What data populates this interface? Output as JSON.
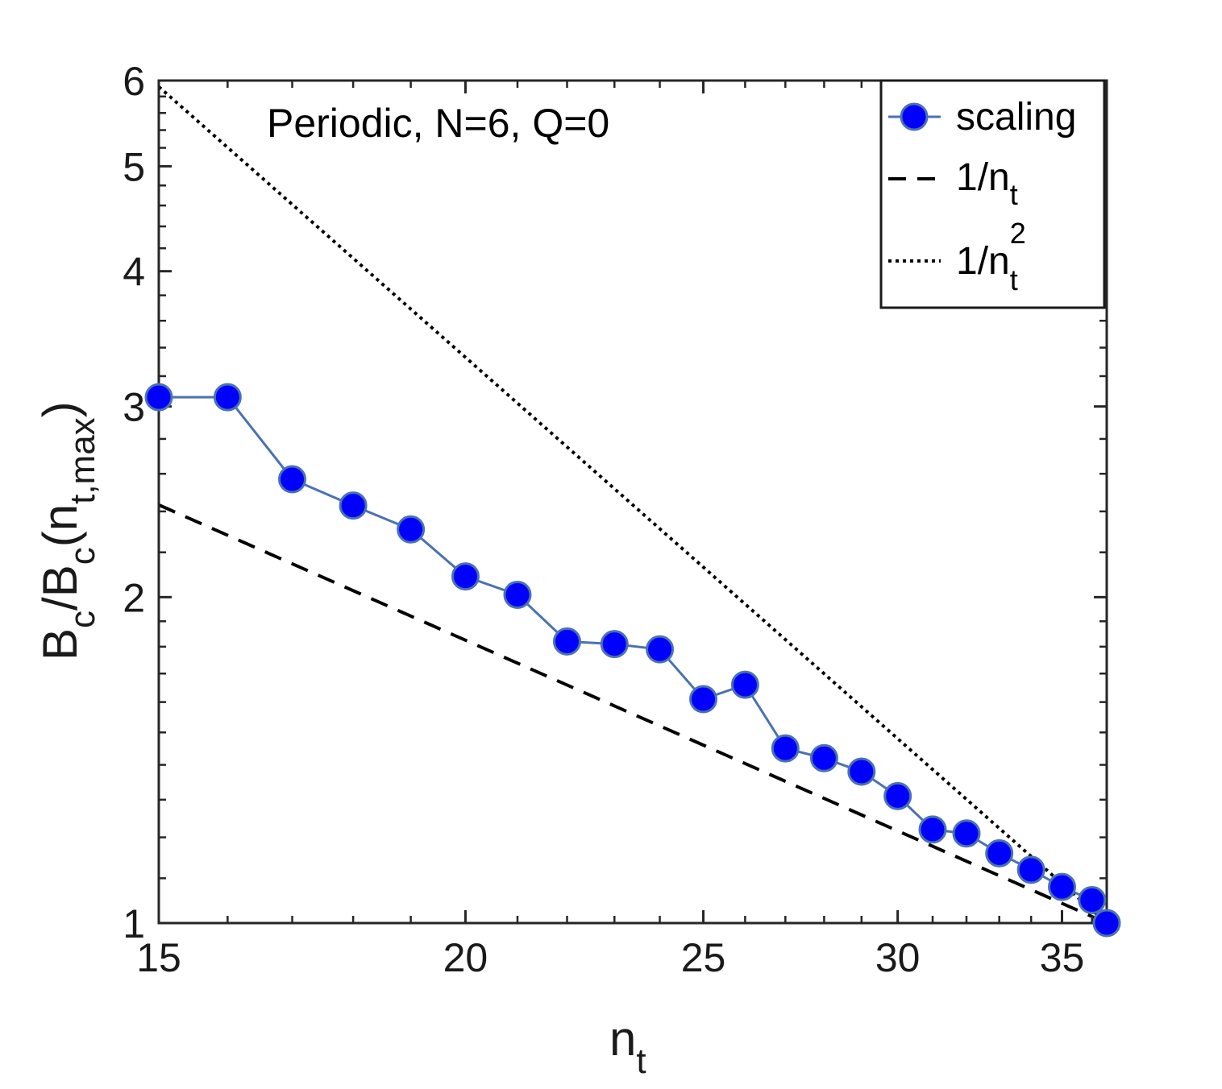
{
  "chart_data": {
    "type": "line",
    "title": "",
    "annotation": "Periodic, N=6, Q=0",
    "xscale": "log",
    "yscale": "log",
    "xlim": [
      15,
      36.5
    ],
    "ylim": [
      1,
      6
    ],
    "xticks": [
      15,
      20,
      25,
      30,
      35
    ],
    "yticks": [
      1,
      2,
      3,
      4,
      5,
      6
    ],
    "xlabel": {
      "main": "n",
      "sub": "t"
    },
    "ylabel": {
      "parts": [
        {
          "text": "B",
          "role": "base"
        },
        {
          "text": "c",
          "role": "sub"
        },
        {
          "text": "/B",
          "role": "base"
        },
        {
          "text": "c",
          "role": "sub"
        },
        {
          "text": "(n",
          "role": "base"
        },
        {
          "text": "t,max",
          "role": "sub"
        },
        {
          "text": ")",
          "role": "base"
        }
      ]
    },
    "grid": false,
    "legend_position": "top-right",
    "series": [
      {
        "name": "scaling",
        "style": "line-marker",
        "color": "#0000ff",
        "line_color": "#4a72b0",
        "x": [
          15,
          16,
          17,
          18,
          19,
          20,
          21,
          22,
          23,
          24,
          25,
          26,
          27,
          28,
          29,
          30,
          31,
          32,
          33,
          34,
          35,
          36,
          36.5
        ],
        "y": [
          3.06,
          3.06,
          2.57,
          2.43,
          2.31,
          2.09,
          2.01,
          1.82,
          1.81,
          1.79,
          1.61,
          1.66,
          1.45,
          1.42,
          1.38,
          1.31,
          1.22,
          1.21,
          1.16,
          1.12,
          1.08,
          1.05,
          1.0
        ]
      },
      {
        "name": "1/n_t",
        "legend_main": "1/n",
        "legend_sub": "t",
        "style": "dashed",
        "color": "#000000",
        "exponent": -1,
        "ref_x": 36.5,
        "ref_y": 1.0
      },
      {
        "name": "1/n_t^2",
        "legend_main": "1/n",
        "legend_sub": "t",
        "legend_sup": "2",
        "style": "dotted",
        "color": "#000000",
        "exponent": -2,
        "ref_x": 36.5,
        "ref_y": 1.0
      }
    ]
  }
}
